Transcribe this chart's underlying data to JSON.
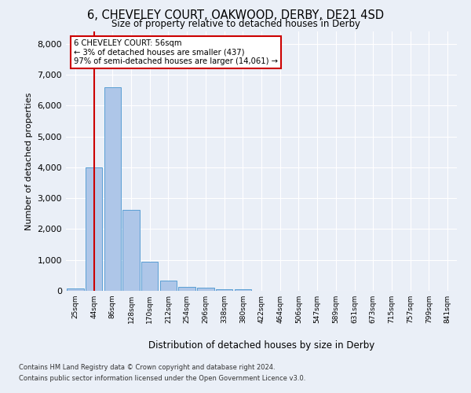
{
  "title_line1": "6, CHEVELEY COURT, OAKWOOD, DERBY, DE21 4SD",
  "title_line2": "Size of property relative to detached houses in Derby",
  "xlabel": "Distribution of detached houses by size in Derby",
  "ylabel": "Number of detached properties",
  "bar_labels": [
    "25sqm",
    "44sqm",
    "86sqm",
    "128sqm",
    "170sqm",
    "212sqm",
    "254sqm",
    "296sqm",
    "338sqm",
    "380sqm",
    "422sqm",
    "464sqm",
    "506sqm",
    "547sqm",
    "589sqm",
    "631sqm",
    "673sqm",
    "715sqm",
    "757sqm",
    "799sqm",
    "841sqm"
  ],
  "bar_heights": [
    80,
    4000,
    6600,
    2620,
    950,
    320,
    140,
    90,
    55,
    55,
    0,
    0,
    0,
    0,
    0,
    0,
    0,
    0,
    0,
    0,
    0
  ],
  "bar_color": "#aec6e8",
  "bar_edge_color": "#5a9fd4",
  "property_line_x": 1,
  "property_line_color": "#cc0000",
  "ylim": [
    0,
    8400
  ],
  "yticks": [
    0,
    1000,
    2000,
    3000,
    4000,
    5000,
    6000,
    7000,
    8000
  ],
  "annotation_text": "6 CHEVELEY COURT: 56sqm\n← 3% of detached houses are smaller (437)\n97% of semi-detached houses are larger (14,061) →",
  "annotation_box_color": "#cc0000",
  "footnote1": "Contains HM Land Registry data © Crown copyright and database right 2024.",
  "footnote2": "Contains public sector information licensed under the Open Government Licence v3.0.",
  "background_color": "#eaeff7",
  "plot_background_color": "#eaeff7",
  "grid_color": "#ffffff"
}
